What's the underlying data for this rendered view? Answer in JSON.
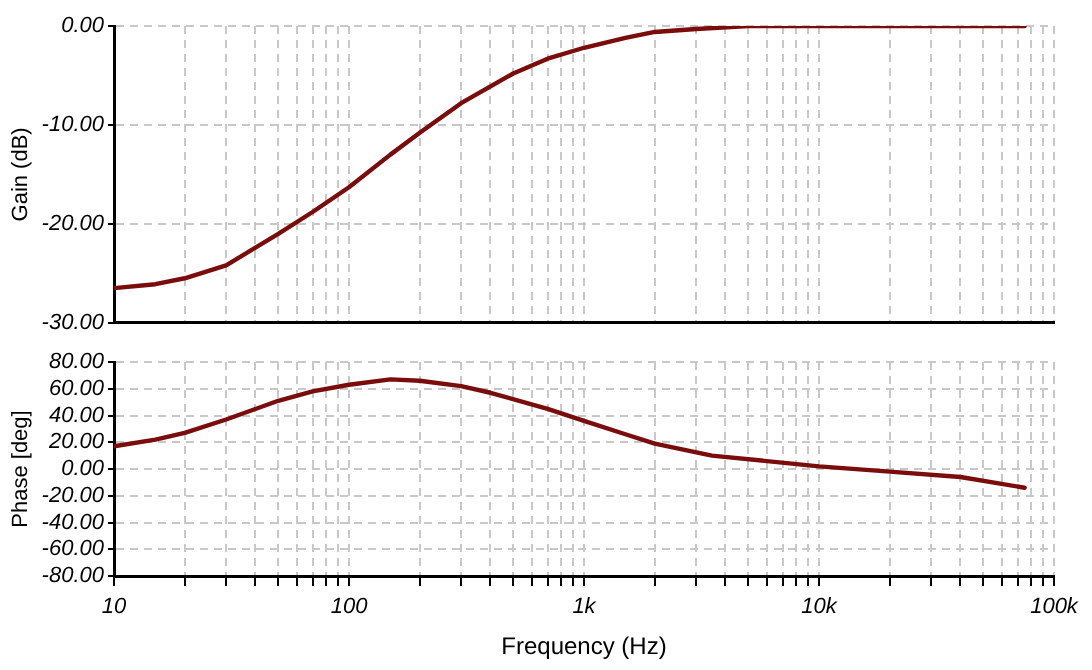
{
  "chart_data": [
    {
      "type": "line",
      "ylabel": "Gain (dB)",
      "color": "#7a0c0c",
      "marker": "none",
      "line_style": "solid",
      "grid": true,
      "log": "x",
      "tick_labels": "y",
      "x": [
        10,
        15,
        20,
        30,
        50,
        70,
        100,
        150,
        200,
        300,
        500,
        700,
        1000,
        1500,
        2000,
        3000,
        5000,
        10000,
        20000,
        50000,
        75000
      ],
      "values": [
        -26.5,
        -26.1,
        -25.5,
        -24.2,
        -21,
        -18.8,
        -16.3,
        -13,
        -10.8,
        -7.8,
        -4.8,
        -3.3,
        -2.2,
        -1.2,
        -0.6,
        -0.3,
        0,
        0,
        0,
        0,
        0
      ],
      "xlim": [
        10,
        100000
      ],
      "xticks": [
        {
          "value": 10,
          "label": null
        },
        {
          "value": 20,
          "label": null
        },
        {
          "value": 30,
          "label": null
        },
        {
          "value": 40,
          "label": null
        },
        {
          "value": 50,
          "label": null
        },
        {
          "value": 60,
          "label": null
        },
        {
          "value": 70,
          "label": null
        },
        {
          "value": 80,
          "label": null
        },
        {
          "value": 90,
          "label": null
        },
        {
          "value": 100,
          "label": null
        },
        {
          "value": 200,
          "label": null
        },
        {
          "value": 300,
          "label": null
        },
        {
          "value": 400,
          "label": null
        },
        {
          "value": 500,
          "label": null
        },
        {
          "value": 600,
          "label": null
        },
        {
          "value": 700,
          "label": null
        },
        {
          "value": 800,
          "label": null
        },
        {
          "value": 900,
          "label": null
        },
        {
          "value": 1000,
          "label": null
        },
        {
          "value": 2000,
          "label": null
        },
        {
          "value": 3000,
          "label": null
        },
        {
          "value": 4000,
          "label": null
        },
        {
          "value": 5000,
          "label": null
        },
        {
          "value": 6000,
          "label": null
        },
        {
          "value": 7000,
          "label": null
        },
        {
          "value": 8000,
          "label": null
        },
        {
          "value": 9000,
          "label": null
        },
        {
          "value": 10000,
          "label": null
        },
        {
          "value": 20000,
          "label": null
        },
        {
          "value": 30000,
          "label": null
        },
        {
          "value": 40000,
          "label": null
        },
        {
          "value": 50000,
          "label": null
        },
        {
          "value": 60000,
          "label": null
        },
        {
          "value": 70000,
          "label": null
        },
        {
          "value": 80000,
          "label": null
        },
        {
          "value": 90000,
          "label": null
        },
        {
          "value": 100000,
          "label": null
        }
      ],
      "ylim": [
        -30,
        0
      ],
      "yticks": [
        {
          "value": -30,
          "label": "-30.00"
        },
        {
          "value": -20,
          "label": "-20.00"
        },
        {
          "value": -10,
          "label": "-10.00"
        },
        {
          "value": 0,
          "label": "0.00"
        }
      ]
    },
    {
      "type": "line",
      "ylabel": "Phase [deg]",
      "xlabel": "Frequency (Hz)",
      "color": "#7a0c0c",
      "marker": "none",
      "line_style": "solid",
      "grid": true,
      "log": "x",
      "x": [
        10,
        15,
        20,
        30,
        50,
        70,
        100,
        150,
        200,
        300,
        400,
        700,
        1000,
        1500,
        2000,
        3500,
        10000,
        20000,
        40000,
        75000
      ],
      "values": [
        17,
        22,
        27,
        37,
        51,
        58,
        63,
        67,
        66,
        62,
        57,
        45,
        36,
        26,
        19,
        10,
        2,
        -2,
        -6,
        -14
      ],
      "xlim": [
        10,
        100000
      ],
      "xticks": [
        {
          "value": 10,
          "label": "10"
        },
        {
          "value": 20,
          "label": null
        },
        {
          "value": 30,
          "label": null
        },
        {
          "value": 40,
          "label": null
        },
        {
          "value": 50,
          "label": null
        },
        {
          "value": 60,
          "label": null
        },
        {
          "value": 70,
          "label": null
        },
        {
          "value": 80,
          "label": null
        },
        {
          "value": 90,
          "label": null
        },
        {
          "value": 100,
          "label": "100"
        },
        {
          "value": 200,
          "label": null
        },
        {
          "value": 300,
          "label": null
        },
        {
          "value": 400,
          "label": null
        },
        {
          "value": 500,
          "label": null
        },
        {
          "value": 600,
          "label": null
        },
        {
          "value": 700,
          "label": null
        },
        {
          "value": 800,
          "label": null
        },
        {
          "value": 900,
          "label": null
        },
        {
          "value": 1000,
          "label": "1k"
        },
        {
          "value": 2000,
          "label": null
        },
        {
          "value": 3000,
          "label": null
        },
        {
          "value": 4000,
          "label": null
        },
        {
          "value": 5000,
          "label": null
        },
        {
          "value": 6000,
          "label": null
        },
        {
          "value": 7000,
          "label": null
        },
        {
          "value": 8000,
          "label": null
        },
        {
          "value": 9000,
          "label": null
        },
        {
          "value": 10000,
          "label": "10k"
        },
        {
          "value": 20000,
          "label": null
        },
        {
          "value": 30000,
          "label": null
        },
        {
          "value": 40000,
          "label": null
        },
        {
          "value": 50000,
          "label": null
        },
        {
          "value": 60000,
          "label": null
        },
        {
          "value": 70000,
          "label": null
        },
        {
          "value": 80000,
          "label": null
        },
        {
          "value": 90000,
          "label": null
        },
        {
          "value": 100000,
          "label": "100k"
        }
      ],
      "ylim": [
        -80,
        80
      ],
      "yticks": [
        {
          "value": -80,
          "label": "-80.00"
        },
        {
          "value": -60,
          "label": "-60.00"
        },
        {
          "value": -40,
          "label": "-40.00"
        },
        {
          "value": -20,
          "label": "-20.00"
        },
        {
          "value": 0,
          "label": "0.00"
        },
        {
          "value": 20,
          "label": "20.00"
        },
        {
          "value": 40,
          "label": "40.00"
        },
        {
          "value": 60,
          "label": "60.00"
        },
        {
          "value": 80,
          "label": "80.00"
        }
      ]
    }
  ]
}
